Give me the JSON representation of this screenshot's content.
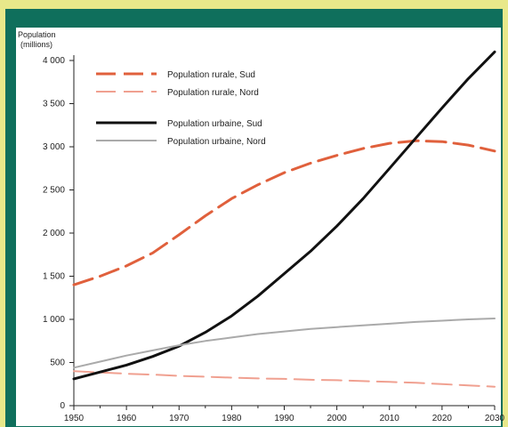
{
  "chart_data": {
    "type": "line",
    "ylabel": "Population",
    "yunit": "(millions)",
    "xlim": [
      1950,
      2030
    ],
    "ylim": [
      0,
      4000
    ],
    "x_ticks": [
      1950,
      1960,
      1970,
      1980,
      1990,
      2000,
      2010,
      2020,
      2030
    ],
    "y_ticks": [
      {
        "value": 0,
        "label": "0"
      },
      {
        "value": 500,
        "label": "500"
      },
      {
        "value": 1000,
        "label": "1 000"
      },
      {
        "value": 1500,
        "label": "1 500"
      },
      {
        "value": 2000,
        "label": "2 000"
      },
      {
        "value": 2500,
        "label": "2 500"
      },
      {
        "value": 3000,
        "label": "3 000"
      },
      {
        "value": 3500,
        "label": "3 500"
      },
      {
        "value": 4000,
        "label": "4 000"
      }
    ],
    "grid": false,
    "legend_position": "top-left",
    "x": [
      1950,
      1955,
      1960,
      1965,
      1970,
      1975,
      1980,
      1985,
      1990,
      1995,
      2000,
      2005,
      2010,
      2015,
      2020,
      2025,
      2030
    ],
    "series": [
      {
        "name": "Population rurale, Sud",
        "color": "#e0603c",
        "style": "dashed",
        "values": [
          1400,
          1500,
          1620,
          1770,
          1980,
          2200,
          2400,
          2560,
          2700,
          2810,
          2900,
          2980,
          3040,
          3070,
          3060,
          3020,
          2950
        ]
      },
      {
        "name": "Population rurale, Nord",
        "color": "#f0a090",
        "style": "dashed",
        "values": [
          400,
          385,
          370,
          360,
          345,
          335,
          325,
          315,
          310,
          300,
          295,
          285,
          275,
          265,
          250,
          235,
          220
        ]
      },
      {
        "name": "Population urbaine, Sud",
        "color": "#111111",
        "style": "solid",
        "values": [
          310,
          390,
          470,
          570,
          690,
          850,
          1040,
          1270,
          1530,
          1790,
          2080,
          2400,
          2750,
          3100,
          3450,
          3790,
          4100
        ]
      },
      {
        "name": "Population urbaine, Nord",
        "color": "#aaaaaa",
        "style": "solid",
        "values": [
          440,
          510,
          580,
          640,
          700,
          750,
          790,
          830,
          860,
          890,
          910,
          930,
          950,
          970,
          985,
          1000,
          1010
        ]
      }
    ]
  }
}
